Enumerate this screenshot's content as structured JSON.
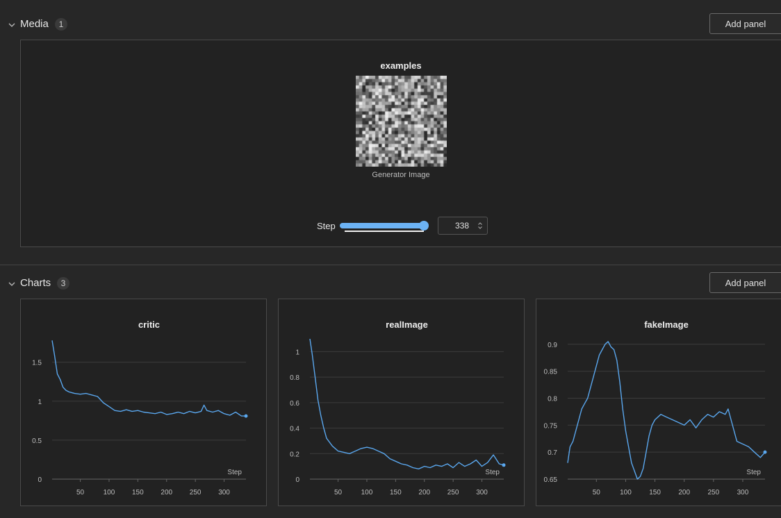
{
  "media_section": {
    "title": "Media",
    "count": "1",
    "add_panel_label": "Add panel",
    "panel": {
      "title": "examples",
      "caption": "Generator Image",
      "step_label": "Step",
      "step_value": "338",
      "slider_fraction": 1.0
    }
  },
  "charts_section": {
    "title": "Charts",
    "count": "3",
    "add_panel_label": "Add panel"
  },
  "chart_data": [
    {
      "type": "line",
      "title": "critic",
      "xlabel": "Step",
      "ylabel": "",
      "xlim": [
        1,
        338
      ],
      "ylim": [
        0,
        1.8
      ],
      "xticks": [
        50,
        100,
        150,
        200,
        250,
        300
      ],
      "yticks": [
        0,
        0.5,
        1,
        1.5
      ],
      "ytick_labels": [
        "0",
        "0.5",
        "1",
        "1.5"
      ],
      "color": "#5aa7ee",
      "series": [
        {
          "x": [
            1,
            5,
            10,
            15,
            20,
            25,
            30,
            40,
            50,
            60,
            70,
            80,
            90,
            100,
            110,
            120,
            130,
            140,
            150,
            160,
            170,
            180,
            190,
            200,
            210,
            220,
            230,
            240,
            250,
            260,
            265,
            270,
            280,
            290,
            300,
            310,
            320,
            330,
            338
          ],
          "y": [
            1.78,
            1.6,
            1.35,
            1.28,
            1.18,
            1.14,
            1.12,
            1.1,
            1.09,
            1.1,
            1.08,
            1.06,
            0.98,
            0.93,
            0.88,
            0.87,
            0.89,
            0.87,
            0.88,
            0.86,
            0.85,
            0.84,
            0.86,
            0.83,
            0.84,
            0.86,
            0.84,
            0.87,
            0.85,
            0.87,
            0.95,
            0.88,
            0.86,
            0.88,
            0.84,
            0.82,
            0.86,
            0.81,
            0.81
          ]
        }
      ]
    },
    {
      "type": "line",
      "title": "realImage",
      "xlabel": "Step",
      "ylabel": "",
      "xlim": [
        1,
        338
      ],
      "ylim": [
        0,
        1.1
      ],
      "xticks": [
        50,
        100,
        150,
        200,
        250,
        300
      ],
      "yticks": [
        0,
        0.2,
        0.4,
        0.6,
        0.8,
        1
      ],
      "ytick_labels": [
        "0",
        "0.2",
        "0.4",
        "0.6",
        "0.8",
        "1"
      ],
      "color": "#5aa7ee",
      "series": [
        {
          "x": [
            1,
            5,
            10,
            15,
            20,
            25,
            30,
            40,
            50,
            60,
            70,
            80,
            90,
            100,
            110,
            120,
            130,
            140,
            150,
            160,
            170,
            180,
            190,
            200,
            210,
            220,
            230,
            240,
            250,
            260,
            270,
            280,
            290,
            300,
            310,
            320,
            330,
            338
          ],
          "y": [
            1.1,
            0.98,
            0.8,
            0.62,
            0.5,
            0.4,
            0.32,
            0.26,
            0.22,
            0.21,
            0.2,
            0.22,
            0.24,
            0.25,
            0.24,
            0.22,
            0.2,
            0.16,
            0.14,
            0.12,
            0.11,
            0.09,
            0.08,
            0.1,
            0.09,
            0.11,
            0.1,
            0.12,
            0.09,
            0.13,
            0.1,
            0.12,
            0.15,
            0.1,
            0.13,
            0.19,
            0.12,
            0.11
          ]
        }
      ]
    },
    {
      "type": "line",
      "title": "fakeImage",
      "xlabel": "Step",
      "ylabel": "",
      "xlim": [
        1,
        338
      ],
      "ylim": [
        0.65,
        0.91
      ],
      "xticks": [
        50,
        100,
        150,
        200,
        250,
        300
      ],
      "yticks": [
        0.65,
        0.7,
        0.75,
        0.8,
        0.85,
        0.9
      ],
      "ytick_labels": [
        "0.65",
        "0.7",
        "0.75",
        "0.8",
        "0.85",
        "0.9"
      ],
      "color": "#5aa7ee",
      "series": [
        {
          "x": [
            1,
            5,
            10,
            15,
            20,
            25,
            30,
            35,
            40,
            45,
            50,
            55,
            60,
            65,
            70,
            75,
            80,
            85,
            90,
            95,
            100,
            105,
            110,
            115,
            120,
            125,
            130,
            135,
            140,
            145,
            150,
            160,
            170,
            180,
            190,
            200,
            210,
            220,
            230,
            240,
            250,
            260,
            270,
            275,
            280,
            290,
            300,
            310,
            320,
            330,
            338
          ],
          "y": [
            0.68,
            0.71,
            0.72,
            0.74,
            0.76,
            0.78,
            0.79,
            0.8,
            0.82,
            0.84,
            0.86,
            0.88,
            0.89,
            0.9,
            0.905,
            0.895,
            0.89,
            0.87,
            0.83,
            0.78,
            0.74,
            0.71,
            0.68,
            0.665,
            0.65,
            0.655,
            0.67,
            0.7,
            0.73,
            0.75,
            0.76,
            0.77,
            0.765,
            0.76,
            0.755,
            0.75,
            0.76,
            0.745,
            0.76,
            0.77,
            0.765,
            0.775,
            0.77,
            0.78,
            0.76,
            0.72,
            0.715,
            0.71,
            0.7,
            0.69,
            0.7
          ]
        }
      ]
    }
  ]
}
